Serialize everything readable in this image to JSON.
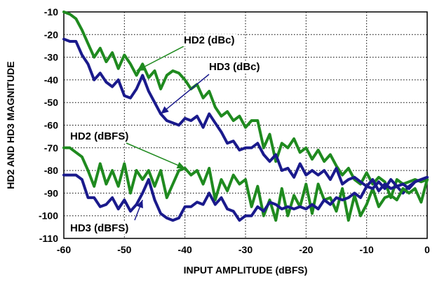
{
  "chart_data": {
    "type": "line",
    "xlabel": "INPUT AMPLITUDE (dBFS)",
    "ylabel": "HD2 AND HD3 MAGNITUDE",
    "xlim": [
      -60,
      0
    ],
    "ylim": [
      -110,
      -10
    ],
    "xticks": [
      -60,
      -50,
      -40,
      -30,
      -20,
      -10,
      0
    ],
    "yticks": [
      -10,
      -20,
      -30,
      -40,
      -50,
      -60,
      -70,
      -80,
      -90,
      -100,
      -110
    ],
    "grid": true,
    "series": [
      {
        "name": "HD2 (dBc)",
        "color": "#1f8a1f",
        "points": [
          [
            -60,
            -10
          ],
          [
            -59,
            -11
          ],
          [
            -58,
            -13
          ],
          [
            -57,
            -18
          ],
          [
            -56,
            -24
          ],
          [
            -55,
            -30
          ],
          [
            -54,
            -26
          ],
          [
            -53,
            -32
          ],
          [
            -52,
            -28
          ],
          [
            -51,
            -35
          ],
          [
            -50,
            -29
          ],
          [
            -49,
            -33
          ],
          [
            -48,
            -38
          ],
          [
            -47,
            -33
          ],
          [
            -46,
            -39
          ],
          [
            -45,
            -36
          ],
          [
            -44,
            -44
          ],
          [
            -43,
            -38
          ],
          [
            -42,
            -36
          ],
          [
            -41,
            -37
          ],
          [
            -40,
            -40
          ],
          [
            -39,
            -44
          ],
          [
            -38,
            -42
          ],
          [
            -37,
            -48
          ],
          [
            -36,
            -45
          ],
          [
            -35,
            -52
          ],
          [
            -34,
            -56
          ],
          [
            -33,
            -54
          ],
          [
            -32,
            -58
          ],
          [
            -31,
            -56
          ],
          [
            -30,
            -61
          ],
          [
            -29,
            -58
          ],
          [
            -28,
            -58
          ],
          [
            -27,
            -70
          ],
          [
            -26,
            -64
          ],
          [
            -25,
            -76
          ],
          [
            -24,
            -68
          ],
          [
            -23,
            -70
          ],
          [
            -22,
            -66
          ],
          [
            -21,
            -72
          ],
          [
            -20,
            -70
          ],
          [
            -19,
            -75
          ],
          [
            -18,
            -71
          ],
          [
            -17,
            -76
          ],
          [
            -16,
            -73
          ],
          [
            -15,
            -78
          ],
          [
            -14,
            -82
          ],
          [
            -13,
            -79
          ],
          [
            -12,
            -84
          ],
          [
            -11,
            -86
          ],
          [
            -10,
            -81
          ],
          [
            -9,
            -86
          ],
          [
            -8,
            -83
          ],
          [
            -7,
            -85
          ],
          [
            -6,
            -92
          ],
          [
            -5,
            -84
          ],
          [
            -4,
            -86
          ],
          [
            -3,
            -85
          ],
          [
            -2,
            -84
          ],
          [
            -1,
            -85
          ],
          [
            0,
            -84
          ]
        ]
      },
      {
        "name": "HD3 (dBc)",
        "color": "#1a1a8c",
        "points": [
          [
            -60,
            -22
          ],
          [
            -59,
            -23
          ],
          [
            -58,
            -23
          ],
          [
            -57,
            -29
          ],
          [
            -56,
            -33
          ],
          [
            -55,
            -40
          ],
          [
            -54,
            -37
          ],
          [
            -53,
            -41
          ],
          [
            -52,
            -43
          ],
          [
            -51,
            -40
          ],
          [
            -50,
            -47
          ],
          [
            -49,
            -48
          ],
          [
            -48,
            -44
          ],
          [
            -47,
            -38
          ],
          [
            -46,
            -45
          ],
          [
            -45,
            -50
          ],
          [
            -44,
            -55
          ],
          [
            -43,
            -58
          ],
          [
            -42,
            -59
          ],
          [
            -41,
            -60
          ],
          [
            -40,
            -57
          ],
          [
            -39,
            -58
          ],
          [
            -38,
            -56
          ],
          [
            -37,
            -61
          ],
          [
            -36,
            -55
          ],
          [
            -35,
            -59
          ],
          [
            -34,
            -63
          ],
          [
            -33,
            -68
          ],
          [
            -32,
            -67
          ],
          [
            -31,
            -71
          ],
          [
            -30,
            -70
          ],
          [
            -29,
            -70
          ],
          [
            -28,
            -68
          ],
          [
            -27,
            -73
          ],
          [
            -26,
            -76
          ],
          [
            -25,
            -73
          ],
          [
            -24,
            -80
          ],
          [
            -23,
            -79
          ],
          [
            -22,
            -83
          ],
          [
            -21,
            -77
          ],
          [
            -20,
            -82
          ],
          [
            -19,
            -80
          ],
          [
            -18,
            -82
          ],
          [
            -17,
            -80
          ],
          [
            -16,
            -84
          ],
          [
            -15,
            -79
          ],
          [
            -14,
            -86
          ],
          [
            -13,
            -84
          ],
          [
            -12,
            -83
          ],
          [
            -11,
            -85
          ],
          [
            -10,
            -87
          ],
          [
            -9,
            -84
          ],
          [
            -8,
            -89
          ],
          [
            -7,
            -86
          ],
          [
            -6,
            -88
          ],
          [
            -5,
            -87
          ],
          [
            -4,
            -90
          ],
          [
            -3,
            -87
          ],
          [
            -2,
            -85
          ],
          [
            -1,
            -84
          ],
          [
            0,
            -83
          ]
        ]
      },
      {
        "name": "HD2 (dBFS)",
        "color": "#1f8a1f",
        "points": [
          [
            -60,
            -70
          ],
          [
            -59,
            -70
          ],
          [
            -58,
            -72
          ],
          [
            -57,
            -74
          ],
          [
            -56,
            -80
          ],
          [
            -55,
            -87
          ],
          [
            -54,
            -77
          ],
          [
            -53,
            -86
          ],
          [
            -52,
            -80
          ],
          [
            -51,
            -87
          ],
          [
            -50,
            -77
          ],
          [
            -49,
            -90
          ],
          [
            -48,
            -80
          ],
          [
            -47,
            -84
          ],
          [
            -46,
            -80
          ],
          [
            -45,
            -87
          ],
          [
            -44,
            -80
          ],
          [
            -43,
            -92
          ],
          [
            -42,
            -86
          ],
          [
            -41,
            -80
          ],
          [
            -40,
            -79
          ],
          [
            -39,
            -82
          ],
          [
            -38,
            -80
          ],
          [
            -37,
            -86
          ],
          [
            -36,
            -79
          ],
          [
            -35,
            -93
          ],
          [
            -34,
            -84
          ],
          [
            -33,
            -89
          ],
          [
            -32,
            -82
          ],
          [
            -31,
            -86
          ],
          [
            -30,
            -84
          ],
          [
            -29,
            -96
          ],
          [
            -28,
            -87
          ],
          [
            -27,
            -100
          ],
          [
            -26,
            -93
          ],
          [
            -25,
            -102
          ],
          [
            -24,
            -88
          ],
          [
            -23,
            -100
          ],
          [
            -22,
            -91
          ],
          [
            -21,
            -96
          ],
          [
            -20,
            -86
          ],
          [
            -19,
            -99
          ],
          [
            -18,
            -86
          ],
          [
            -17,
            -93
          ],
          [
            -16,
            -92
          ],
          [
            -15,
            -98
          ],
          [
            -14,
            -88
          ],
          [
            -13,
            -102
          ],
          [
            -12,
            -91
          ],
          [
            -11,
            -100
          ],
          [
            -10,
            -95
          ],
          [
            -9,
            -88
          ],
          [
            -8,
            -96
          ],
          [
            -7,
            -92
          ],
          [
            -6,
            -91
          ],
          [
            -5,
            -93
          ],
          [
            -4,
            -88
          ],
          [
            -3,
            -90
          ],
          [
            -2,
            -88
          ],
          [
            -1,
            -94
          ],
          [
            0,
            -84
          ]
        ]
      },
      {
        "name": "HD3 (dBFS)",
        "color": "#1a1a8c",
        "points": [
          [
            -60,
            -82
          ],
          [
            -59,
            -82
          ],
          [
            -58,
            -82
          ],
          [
            -57,
            -84
          ],
          [
            -56,
            -92
          ],
          [
            -55,
            -92
          ],
          [
            -54,
            -96
          ],
          [
            -53,
            -95
          ],
          [
            -52,
            -92
          ],
          [
            -51,
            -97
          ],
          [
            -50,
            -93
          ],
          [
            -49,
            -98
          ],
          [
            -48,
            -95
          ],
          [
            -47,
            -90
          ],
          [
            -46,
            -84
          ],
          [
            -45,
            -93
          ],
          [
            -44,
            -99
          ],
          [
            -43,
            -101
          ],
          [
            -42,
            -102
          ],
          [
            -41,
            -101
          ],
          [
            -40,
            -96
          ],
          [
            -39,
            -96
          ],
          [
            -38,
            -94
          ],
          [
            -37,
            -95
          ],
          [
            -36,
            -90
          ],
          [
            -35,
            -95
          ],
          [
            -34,
            -92
          ],
          [
            -33,
            -97
          ],
          [
            -32,
            -98
          ],
          [
            -31,
            -102
          ],
          [
            -30,
            -100
          ],
          [
            -29,
            -100
          ],
          [
            -28,
            -96
          ],
          [
            -27,
            -98
          ],
          [
            -26,
            -94
          ],
          [
            -25,
            -95
          ],
          [
            -24,
            -97
          ],
          [
            -23,
            -96
          ],
          [
            -22,
            -97
          ],
          [
            -21,
            -96
          ],
          [
            -20,
            -97
          ],
          [
            -19,
            -95
          ],
          [
            -18,
            -97
          ],
          [
            -17,
            -93
          ],
          [
            -16,
            -95
          ],
          [
            -15,
            -92
          ],
          [
            -14,
            -93
          ],
          [
            -13,
            -92
          ],
          [
            -12,
            -90
          ],
          [
            -11,
            -92
          ],
          [
            -10,
            -87
          ],
          [
            -9,
            -88
          ],
          [
            -8,
            -85
          ],
          [
            -7,
            -88
          ],
          [
            -6,
            -84
          ],
          [
            -5,
            -87
          ],
          [
            -4,
            -86
          ],
          [
            -3,
            -88
          ],
          [
            -2,
            -85
          ],
          [
            -1,
            -84
          ],
          [
            0,
            -83
          ]
        ]
      }
    ],
    "annotations": [
      {
        "text": "HD2 (dBc)",
        "series": 0,
        "at": [
          -48,
          -36
        ]
      },
      {
        "text": "HD3 (dBc)",
        "series": 1,
        "at": [
          -44,
          -55
        ]
      },
      {
        "text": "HD2 (dBFS)",
        "series": 2,
        "at": [
          -40,
          -79
        ]
      },
      {
        "text": "HD3 (dBFS)",
        "series": 3,
        "at": [
          -47,
          -93
        ]
      }
    ]
  }
}
